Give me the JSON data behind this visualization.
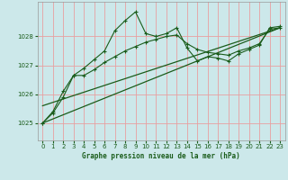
{
  "title": "Graphe pression niveau de la mer (hPa)",
  "bg_color": "#cce8ea",
  "grid_color": "#e8a0a0",
  "line_color": "#1a5c1a",
  "xlim": [
    -0.5,
    23.5
  ],
  "ylim": [
    1024.4,
    1029.2
  ],
  "yticks": [
    1025,
    1026,
    1027,
    1028
  ],
  "xticks": [
    0,
    1,
    2,
    3,
    4,
    5,
    6,
    7,
    8,
    9,
    10,
    11,
    12,
    13,
    14,
    15,
    16,
    17,
    18,
    19,
    20,
    21,
    22,
    23
  ],
  "series1_x": [
    0,
    1,
    2,
    3,
    4,
    5,
    6,
    7,
    8,
    9,
    10,
    11,
    12,
    13,
    14,
    15,
    16,
    17,
    18,
    19,
    20,
    21,
    22,
    23
  ],
  "series1_y": [
    1025.0,
    1025.35,
    1025.9,
    1026.65,
    1026.65,
    1026.85,
    1027.1,
    1027.3,
    1027.5,
    1027.65,
    1027.8,
    1027.9,
    1028.0,
    1028.05,
    1027.75,
    1027.55,
    1027.45,
    1027.4,
    1027.35,
    1027.5,
    1027.6,
    1027.75,
    1028.25,
    1028.3
  ],
  "series2_x": [
    0,
    1,
    2,
    3,
    4,
    5,
    6,
    7,
    8,
    9,
    10,
    11,
    12,
    13,
    14,
    15,
    16,
    17,
    18,
    19,
    20,
    21,
    22,
    23
  ],
  "series2_y": [
    1025.0,
    1025.4,
    1026.1,
    1026.65,
    1026.9,
    1027.2,
    1027.5,
    1028.2,
    1028.55,
    1028.85,
    1028.1,
    1028.0,
    1028.1,
    1028.3,
    1027.6,
    1027.15,
    1027.3,
    1027.25,
    1027.15,
    1027.4,
    1027.55,
    1027.7,
    1028.3,
    1028.35
  ],
  "series3_x": [
    0,
    23
  ],
  "series3_y": [
    1025.0,
    1028.3
  ],
  "series4_x": [
    0,
    23
  ],
  "series4_y": [
    1025.6,
    1028.3
  ]
}
